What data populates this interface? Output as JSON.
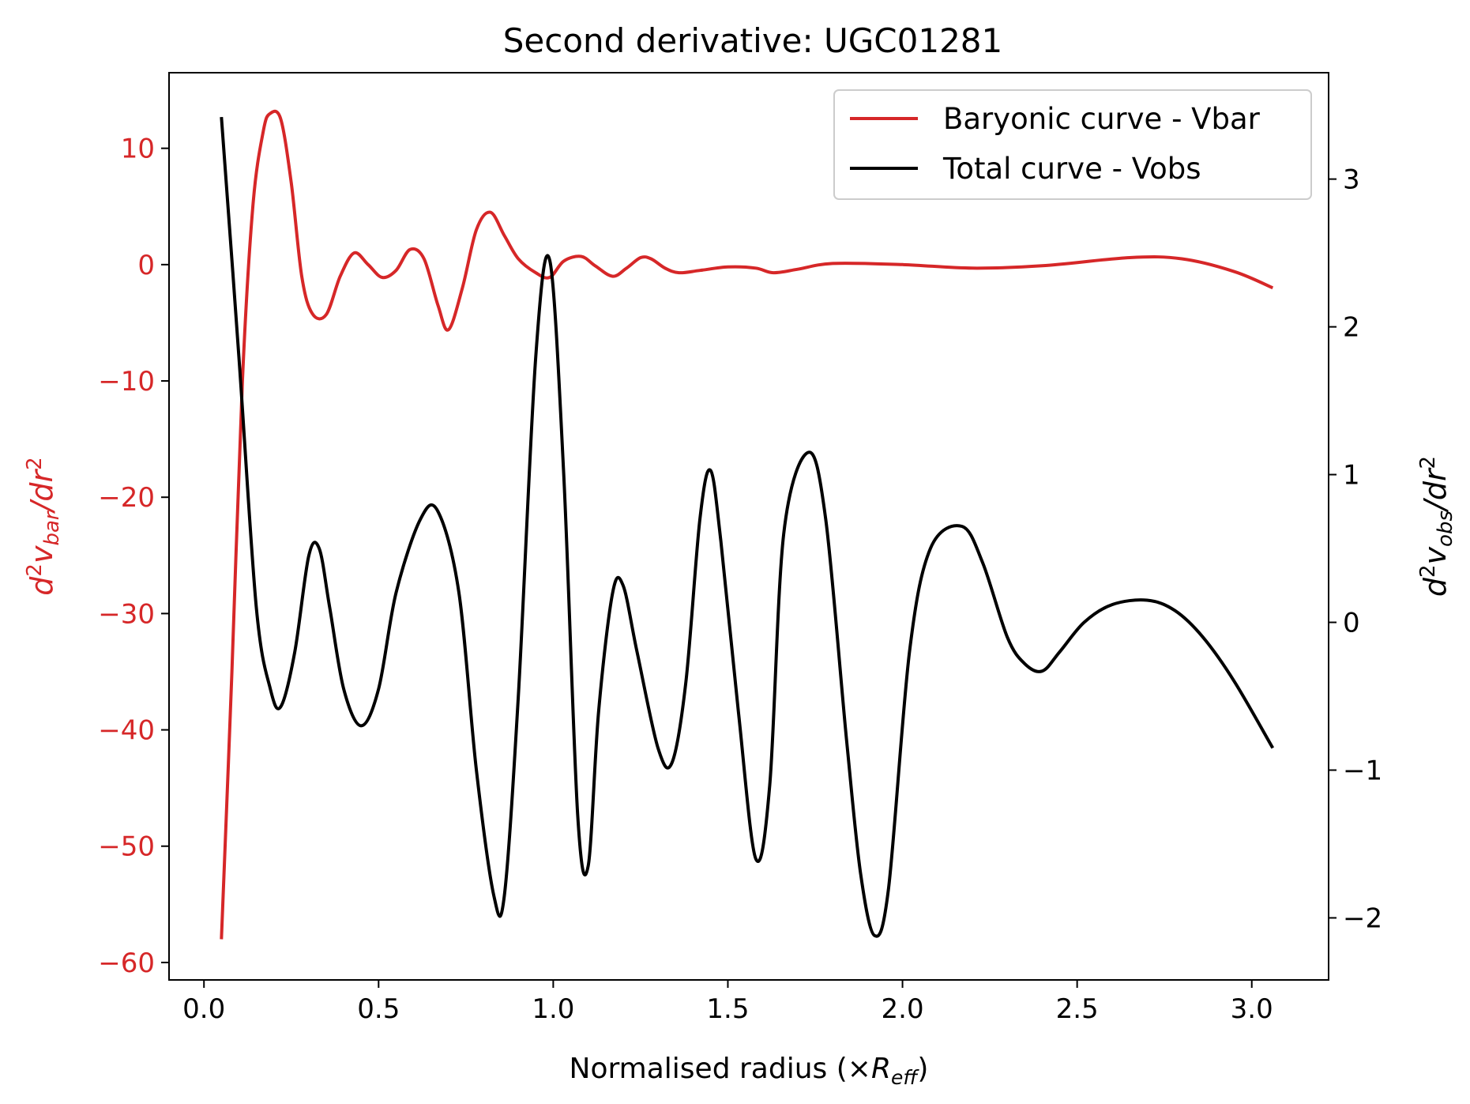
{
  "chart_data": {
    "type": "line",
    "title": "Second derivative: UGC01281",
    "xlabel_text": "Normalised radius (×",
    "xlabel_math": "R",
    "xlabel_math_sub": "eff",
    "xlabel_close": ")",
    "ylabel_left": {
      "d": "d",
      "exp": "2",
      "v": "v",
      "sub": "bar",
      "tail": "/dr",
      "tail_exp": "2"
    },
    "ylabel_right": {
      "d": "d",
      "exp": "2",
      "v": "v",
      "sub": "obs",
      "tail": "/dr",
      "tail_exp": "2"
    },
    "xlim": [
      -0.1,
      3.22
    ],
    "ylim_left": [
      -61.5,
      16.5
    ],
    "ylim_right": [
      -2.42,
      3.72
    ],
    "x_ticks": [
      0.0,
      0.5,
      1.0,
      1.5,
      2.0,
      2.5,
      3.0
    ],
    "x_tick_labels": [
      "0.0",
      "0.5",
      "1.0",
      "1.5",
      "2.0",
      "2.5",
      "3.0"
    ],
    "y_left_ticks": [
      10,
      0,
      -10,
      -20,
      -30,
      -40,
      -50,
      -60
    ],
    "y_left_tick_labels": [
      "10",
      "0",
      "−10",
      "−20",
      "−30",
      "−40",
      "−50",
      "−60"
    ],
    "y_right_ticks": [
      3,
      2,
      1,
      0,
      -1,
      -2
    ],
    "y_right_tick_labels": [
      "3",
      "2",
      "1",
      "0",
      "−1",
      "−2"
    ],
    "grid": false,
    "legend_position": "top-right",
    "colors": {
      "bar": "#d62728",
      "obs": "#000000",
      "left_axis_text": "#d62728"
    },
    "series": [
      {
        "name": "Baryonic curve - Vbar",
        "axis": "left",
        "color": "#d62728",
        "x": [
          0.05,
          0.08,
          0.11,
          0.14,
          0.17,
          0.19,
          0.22,
          0.25,
          0.28,
          0.31,
          0.35,
          0.39,
          0.43,
          0.47,
          0.51,
          0.55,
          0.59,
          0.63,
          0.67,
          0.7,
          0.74,
          0.78,
          0.82,
          0.86,
          0.9,
          0.95,
          0.99,
          1.03,
          1.08,
          1.12,
          1.17,
          1.21,
          1.25,
          1.28,
          1.32,
          1.36,
          1.42,
          1.5,
          1.58,
          1.63,
          1.7,
          1.8,
          2.0,
          2.2,
          2.4,
          2.65,
          2.8,
          2.95,
          3.06
        ],
        "y": [
          -58,
          -35,
          -10,
          5,
          11.5,
          13,
          12.5,
          7,
          -1,
          -4.2,
          -4.3,
          -1,
          1,
          0,
          -1.1,
          -0.5,
          1.3,
          0.5,
          -3.5,
          -5.6,
          -2,
          3,
          4.5,
          2.5,
          0.5,
          -0.7,
          -1.1,
          0.3,
          0.7,
          -0.1,
          -1.0,
          -0.3,
          0.6,
          0.5,
          -0.3,
          -0.7,
          -0.5,
          -0.2,
          -0.3,
          -0.7,
          -0.4,
          0.1,
          0,
          -0.3,
          -0.1,
          0.6,
          0.5,
          -0.6,
          -2.0
        ]
      },
      {
        "name": "Total curve - Vobs",
        "axis": "right",
        "color": "#000000",
        "x": [
          0.05,
          0.1,
          0.15,
          0.19,
          0.22,
          0.26,
          0.3,
          0.33,
          0.36,
          0.4,
          0.45,
          0.5,
          0.55,
          0.62,
          0.67,
          0.73,
          0.78,
          0.83,
          0.86,
          0.9,
          0.95,
          0.99,
          1.03,
          1.07,
          1.1,
          1.13,
          1.17,
          1.2,
          1.24,
          1.3,
          1.34,
          1.38,
          1.42,
          1.45,
          1.48,
          1.53,
          1.58,
          1.62,
          1.66,
          1.73,
          1.78,
          1.84,
          1.88,
          1.92,
          1.96,
          2.02,
          2.08,
          2.17,
          2.23,
          2.3,
          2.35,
          2.4,
          2.45,
          2.52,
          2.6,
          2.7,
          2.78,
          2.86,
          2.95,
          3.06
        ],
        "y": [
          3.42,
          1.8,
          0.1,
          -0.45,
          -0.57,
          -0.2,
          0.45,
          0.5,
          0.1,
          -0.45,
          -0.7,
          -0.45,
          0.2,
          0.7,
          0.75,
          0.2,
          -1.0,
          -1.85,
          -1.85,
          -0.5,
          1.8,
          2.45,
          1.0,
          -1.3,
          -1.65,
          -0.6,
          0.2,
          0.25,
          -0.2,
          -0.85,
          -0.95,
          -0.4,
          0.7,
          1.03,
          0.55,
          -0.6,
          -1.6,
          -1.1,
          0.6,
          1.15,
          0.7,
          -0.8,
          -1.7,
          -2.12,
          -1.8,
          -0.2,
          0.5,
          0.65,
          0.4,
          -0.1,
          -0.28,
          -0.33,
          -0.2,
          0.0,
          0.12,
          0.15,
          0.08,
          -0.1,
          -0.4,
          -0.85
        ]
      }
    ]
  }
}
